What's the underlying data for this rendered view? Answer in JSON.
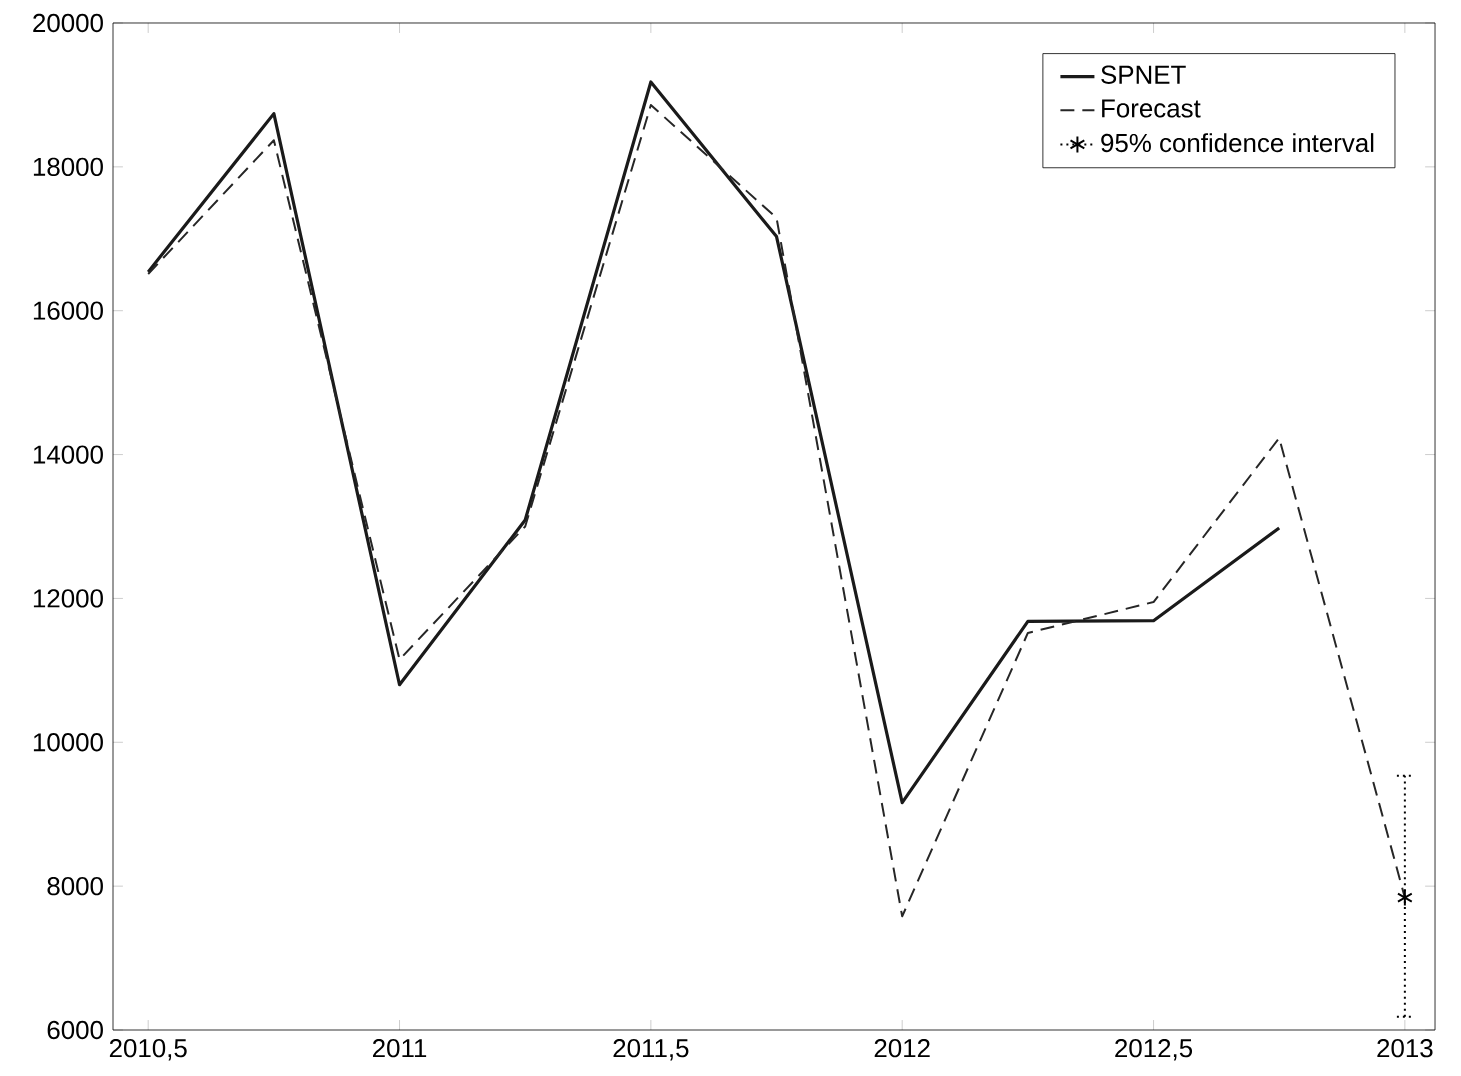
{
  "chart_data": {
    "type": "line",
    "x": [
      2010.5,
      2010.75,
      2011,
      2011.25,
      2011.5,
      2011.75,
      2012,
      2012.25,
      2012.5,
      2012.75
    ],
    "series": [
      {
        "name": "SPNET",
        "color": "#1a1a1a",
        "line_style": "solid",
        "marker": "none",
        "values": [
          16540,
          18740,
          10800,
          13090,
          19180,
          17030,
          9160,
          11680,
          11690,
          12980
        ]
      },
      {
        "name": "Forecast",
        "color": "#262626",
        "line_style": "dashed",
        "marker": "none",
        "x": [
          2010.5,
          2010.75,
          2011,
          2011.25,
          2011.5,
          2011.75,
          2012,
          2012.25,
          2012.5,
          2012.75,
          2013
        ],
        "values": [
          16510,
          18370,
          11150,
          13000,
          18860,
          17290,
          7580,
          11520,
          11950,
          14230,
          7840
        ]
      },
      {
        "name": "95% confidence interval",
        "type": "scatter",
        "color": "#000000",
        "line_style": "dotted",
        "marker": "cross",
        "x": [
          2013
        ],
        "values": [
          7840
        ],
        "errors": [
          [
            6185,
            9535
          ]
        ]
      }
    ],
    "xlim": [
      2010.43,
      2013.06
    ],
    "ylim": [
      6000,
      20000
    ],
    "xticks": [
      {
        "value": 2010.5,
        "label": "2010,5"
      },
      2011,
      {
        "value": 2011.5,
        "label": "2011,5"
      },
      2012,
      {
        "value": 2012.5,
        "label": "2012,5"
      },
      2013
    ],
    "yticks": [
      6000,
      8000,
      10000,
      12000,
      14000,
      16000,
      18000,
      20000
    ],
    "grid": false,
    "legend": "top right"
  }
}
